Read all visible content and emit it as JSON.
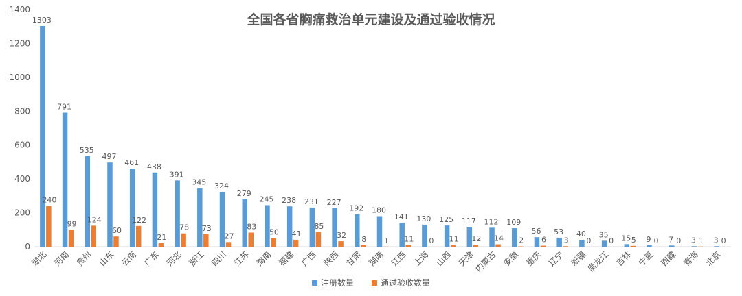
{
  "chart_data": {
    "type": "bar",
    "title": "全国各省胸痛救治单元建设及通过验收情况",
    "xlabel": "",
    "ylabel": "",
    "ylim": [
      0,
      1400
    ],
    "yticks": [
      0,
      200,
      400,
      600,
      800,
      1000,
      1200,
      1400
    ],
    "grid": false,
    "legend_position": "bottom",
    "categories": [
      "湖北",
      "河南",
      "贵州",
      "山东",
      "云南",
      "广东",
      "河北",
      "浙江",
      "四川",
      "江苏",
      "海南",
      "福建",
      "广西",
      "陕西",
      "甘肃",
      "湖南",
      "江西",
      "上海",
      "山西",
      "天津",
      "内蒙古",
      "安徽",
      "重庆",
      "辽宁",
      "新疆",
      "黑龙江",
      "吉林",
      "宁夏",
      "西藏",
      "青海",
      "北京"
    ],
    "series": [
      {
        "name": "注册数量",
        "color": "#5B9BD5",
        "values": [
          1303,
          791,
          535,
          497,
          461,
          438,
          391,
          345,
          324,
          279,
          245,
          238,
          231,
          227,
          192,
          180,
          141,
          130,
          125,
          117,
          112,
          109,
          56,
          53,
          40,
          35,
          15,
          9,
          7,
          3,
          3
        ]
      },
      {
        "name": "通过验收数量",
        "color": "#ED7D31",
        "values": [
          240,
          99,
          124,
          60,
          122,
          21,
          78,
          73,
          27,
          83,
          50,
          41,
          85,
          32,
          8,
          1,
          11,
          0,
          11,
          12,
          14,
          2,
          6,
          3,
          0,
          0,
          5,
          0,
          0,
          1,
          0
        ]
      }
    ]
  }
}
